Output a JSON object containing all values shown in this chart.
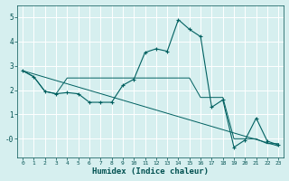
{
  "xlabel": "Humidex (Indice chaleur)",
  "background_color": "#d6efef",
  "grid_color": "#c0dede",
  "line_color": "#006060",
  "xlim": [
    -0.5,
    23.5
  ],
  "ylim": [
    -0.75,
    5.5
  ],
  "xticks": [
    0,
    1,
    2,
    3,
    4,
    5,
    6,
    7,
    8,
    9,
    10,
    11,
    12,
    13,
    14,
    15,
    16,
    17,
    18,
    19,
    20,
    21,
    22,
    23
  ],
  "yticks": [
    0,
    1,
    2,
    3,
    4,
    5
  ],
  "ytick_labels": [
    "-0",
    "1",
    "2",
    "3",
    "4",
    "5"
  ],
  "series1_x": [
    0,
    1,
    2,
    3,
    4,
    5,
    6,
    7,
    8,
    9,
    10,
    11,
    12,
    13,
    14,
    15,
    16,
    17,
    18,
    19,
    20,
    21,
    22,
    23
  ],
  "series1_y": [
    2.8,
    2.55,
    1.95,
    1.85,
    1.9,
    1.85,
    1.5,
    1.5,
    1.5,
    2.2,
    2.45,
    3.55,
    3.7,
    3.6,
    4.9,
    4.5,
    4.2,
    1.3,
    1.6,
    -0.35,
    -0.05,
    0.85,
    -0.1,
    -0.25
  ],
  "series2_x": [
    0,
    1,
    2,
    3,
    4,
    5,
    6,
    7,
    8,
    9,
    10,
    11,
    12,
    13,
    14,
    15,
    16,
    17,
    18,
    19,
    20,
    21,
    22,
    23
  ],
  "series2_y": [
    2.8,
    2.55,
    1.95,
    1.85,
    2.5,
    2.5,
    2.5,
    2.5,
    2.5,
    2.5,
    2.5,
    2.5,
    2.5,
    2.5,
    2.5,
    2.5,
    1.7,
    1.7,
    1.7,
    0.0,
    0.0,
    0.0,
    -0.2,
    -0.2
  ],
  "series3_x": [
    0,
    23
  ],
  "series3_y": [
    2.8,
    -0.3
  ]
}
